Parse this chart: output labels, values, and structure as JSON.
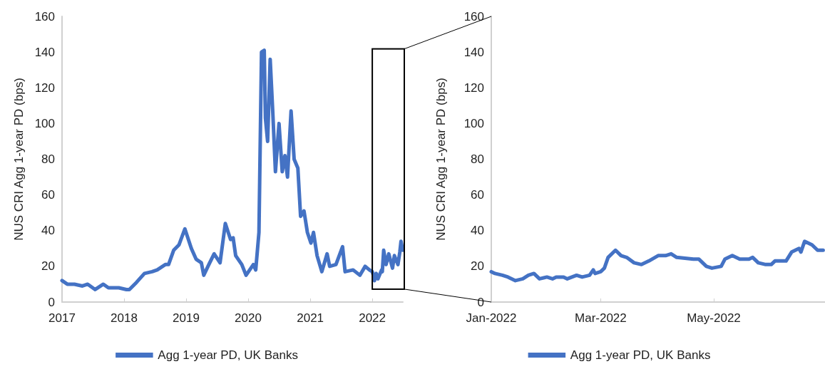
{
  "chart_data": [
    {
      "type": "line",
      "ylabel": "NUS CRI Agg 1-year PD (bps)",
      "xlim": [
        "2017-01-01",
        "2022-06-30"
      ],
      "xticks": [
        "2017",
        "2018",
        "2019",
        "2020",
        "2021",
        "2022"
      ],
      "ylim": [
        0,
        160
      ],
      "yticks": [
        0,
        20,
        40,
        60,
        80,
        100,
        120,
        140,
        160
      ],
      "grid": false,
      "legend": "bottom",
      "marker": "none",
      "line_style": "solid",
      "x": [
        "2017-01-01",
        "2017-02-01",
        "2017-03-15",
        "2017-05-01",
        "2017-06-01",
        "2017-07-15",
        "2017-09-01",
        "2017-10-01",
        "2017-12-01",
        "2018-01-15",
        "2018-02-01",
        "2018-03-15",
        "2018-05-01",
        "2018-06-15",
        "2018-07-15",
        "2018-09-01",
        "2018-09-20",
        "2018-10-20",
        "2018-11-20",
        "2018-12-25",
        "2019-02-01",
        "2019-03-01",
        "2019-04-01",
        "2019-04-15",
        "2019-05-15",
        "2019-06-15",
        "2019-07-20",
        "2019-08-20",
        "2019-09-20",
        "2019-10-05",
        "2019-10-20",
        "2019-11-25",
        "2019-12-20",
        "2020-02-01",
        "2020-02-15",
        "2020-03-05",
        "2020-03-20",
        "2020-04-05",
        "2020-04-12",
        "2020-04-25",
        "2020-05-10",
        "2020-05-25",
        "2020-06-10",
        "2020-07-01",
        "2020-07-20",
        "2020-08-05",
        "2020-08-20",
        "2020-09-10",
        "2020-09-28",
        "2020-10-20",
        "2020-11-05",
        "2020-11-25",
        "2020-12-15",
        "2021-01-05",
        "2021-01-20",
        "2021-02-10",
        "2021-03-10",
        "2021-04-10",
        "2021-04-25",
        "2021-06-01",
        "2021-07-10",
        "2021-07-25",
        "2021-09-10",
        "2021-10-20",
        "2021-11-20",
        "2021-12-15",
        "2022-01-01",
        "2022-01-10",
        "2022-01-14",
        "2022-01-24",
        "2022-02-03",
        "2022-02-25",
        "2022-03-01",
        "2022-03-09",
        "2022-03-23",
        "2022-04-08",
        "2022-04-30",
        "2022-05-11",
        "2022-06-01",
        "2022-06-12",
        "2022-06-19",
        "2022-06-29"
      ],
      "series": [
        {
          "name": "Agg 1-year PD, UK Banks",
          "color": "#4472c4",
          "values": [
            12,
            10,
            10,
            9,
            10,
            7,
            10,
            8,
            8,
            7,
            7,
            11,
            16,
            17,
            18,
            21,
            21,
            29,
            32,
            41,
            30,
            24,
            22,
            15,
            21,
            27,
            22,
            44,
            35,
            36,
            26,
            21,
            15,
            21,
            18,
            39,
            140,
            141,
            103,
            90,
            136,
            107,
            73,
            100,
            73,
            82,
            70,
            107,
            80,
            75,
            48,
            51,
            39,
            33,
            39,
            26,
            17,
            27,
            20,
            21,
            31,
            17,
            18,
            15,
            20,
            18,
            17,
            14,
            12,
            16,
            13,
            18,
            17,
            29,
            21,
            27,
            19,
            26,
            21,
            28,
            34,
            29
          ]
        }
      ]
    },
    {
      "type": "line",
      "ylabel": "NUS CRI Agg 1-year PD (bps)",
      "xlim": [
        "2022-01-01",
        "2022-06-30"
      ],
      "xticks": [
        {
          "value": "2022-01-01",
          "label": "Jan-2022"
        },
        {
          "value": "2022-03-01",
          "label": "Mar-2022"
        },
        {
          "value": "2022-05-01",
          "label": "May-2022"
        }
      ],
      "ylim": [
        0,
        160
      ],
      "yticks": [
        0,
        20,
        40,
        60,
        80,
        100,
        120,
        140,
        160
      ],
      "grid": false,
      "legend": "bottom",
      "marker": "none",
      "line_style": "solid",
      "x": [
        "2022-01-01",
        "2022-01-03",
        "2022-01-07",
        "2022-01-10",
        "2022-01-14",
        "2022-01-18",
        "2022-01-21",
        "2022-01-24",
        "2022-01-27",
        "2022-01-31",
        "2022-02-03",
        "2022-02-05",
        "2022-02-09",
        "2022-02-11",
        "2022-02-16",
        "2022-02-19",
        "2022-02-23",
        "2022-02-25",
        "2022-02-26",
        "2022-03-01",
        "2022-03-03",
        "2022-03-05",
        "2022-03-09",
        "2022-03-12",
        "2022-03-15",
        "2022-03-19",
        "2022-03-23",
        "2022-03-27",
        "2022-04-01",
        "2022-04-05",
        "2022-04-08",
        "2022-04-11",
        "2022-04-20",
        "2022-04-23",
        "2022-04-27",
        "2022-04-30",
        "2022-05-05",
        "2022-05-07",
        "2022-05-11",
        "2022-05-15",
        "2022-05-20",
        "2022-05-22",
        "2022-05-25",
        "2022-05-29",
        "2022-06-01",
        "2022-06-03",
        "2022-06-09",
        "2022-06-12",
        "2022-06-16",
        "2022-06-17",
        "2022-06-19",
        "2022-06-23",
        "2022-06-26",
        "2022-06-29"
      ],
      "series": [
        {
          "name": "Agg 1-year PD, UK Banks",
          "color": "#4472c4",
          "values": [
            17,
            16,
            15,
            14,
            12,
            13,
            15,
            16,
            13,
            14,
            13,
            14,
            14,
            13,
            15,
            14,
            15,
            18,
            16,
            17,
            19,
            25,
            29,
            26,
            25,
            22,
            21,
            23,
            26,
            26,
            27,
            25,
            24,
            24,
            20,
            19,
            20,
            24,
            26,
            24,
            24,
            25,
            22,
            21,
            21,
            23,
            23,
            28,
            30,
            28,
            34,
            32,
            29,
            29
          ]
        }
      ]
    }
  ]
}
